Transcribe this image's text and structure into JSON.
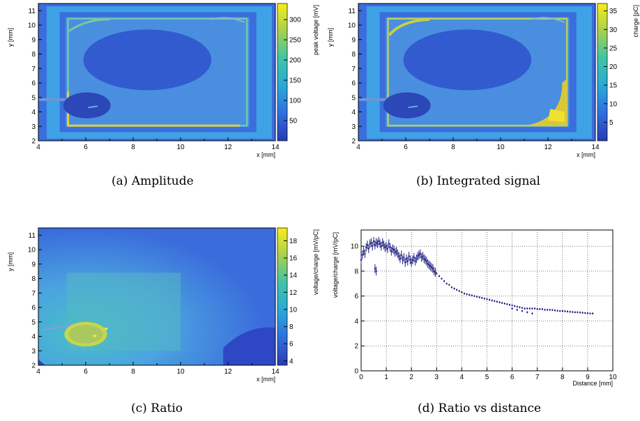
{
  "captions": {
    "a": "(a) Amplitude",
    "b": "(b) Integrated signal",
    "c": "(c) Ratio",
    "d": "(d) Ratio vs distance"
  },
  "colors": {
    "map_background": "#3f68e0",
    "map_blob": "#2e4fc6",
    "map_border": "#42a8e8",
    "map_edge": "#e6d24a",
    "scatter_points": "#1a1a80"
  },
  "chart_data": [
    {
      "id": "a",
      "type": "heatmap",
      "title": "",
      "xlabel": "x [mm]",
      "ylabel": "y [mm]",
      "xlim": [
        4,
        14
      ],
      "ylim": [
        2,
        11.5
      ],
      "xticks": [
        4,
        6,
        8,
        10,
        12,
        14
      ],
      "yticks": [
        2,
        3,
        4,
        5,
        6,
        7,
        8,
        9,
        10,
        11
      ],
      "colorbar": {
        "label": "peak voltage [mV]",
        "range": [
          0,
          340
        ],
        "ticks": [
          50,
          100,
          150,
          200,
          250,
          300
        ]
      }
    },
    {
      "id": "b",
      "type": "heatmap",
      "title": "",
      "xlabel": "x [mm]",
      "ylabel": "y [mm]",
      "xlim": [
        4,
        14
      ],
      "ylim": [
        2,
        11.5
      ],
      "xticks": [
        4,
        6,
        8,
        10,
        12,
        14
      ],
      "yticks": [
        2,
        3,
        4,
        5,
        6,
        7,
        8,
        9,
        10,
        11
      ],
      "colorbar": {
        "label": "charge [pC]",
        "range": [
          0,
          37
        ],
        "ticks": [
          5,
          10,
          15,
          20,
          25,
          30,
          35
        ]
      }
    },
    {
      "id": "c",
      "type": "heatmap",
      "title": "",
      "xlabel": "x [mm]",
      "ylabel": "y [mm]",
      "xlim": [
        4,
        14
      ],
      "ylim": [
        2,
        11.5
      ],
      "xticks": [
        4,
        6,
        8,
        10,
        12,
        14
      ],
      "yticks": [
        2,
        3,
        4,
        5,
        6,
        7,
        8,
        9,
        10,
        11
      ],
      "colorbar": {
        "label": "voltage/charge [mV/pC]",
        "range": [
          3.5,
          19.5
        ],
        "ticks": [
          4,
          6,
          8,
          10,
          12,
          14,
          16,
          18
        ]
      }
    },
    {
      "id": "d",
      "type": "scatter",
      "title": "",
      "xlabel": "Distance [mm]",
      "ylabel": "voltage/charge [mV/pC]",
      "xlim": [
        0,
        10
      ],
      "ylim": [
        0,
        11.3
      ],
      "xticks": [
        0,
        1,
        2,
        3,
        4,
        5,
        6,
        7,
        8,
        9,
        10
      ],
      "yticks": [
        0,
        2,
        4,
        6,
        8,
        10
      ],
      "grid": true,
      "series": [
        {
          "x": [
            0.0,
            0.05,
            0.1,
            0.15,
            0.2,
            0.25,
            0.3,
            0.35,
            0.4,
            0.45,
            0.5,
            0.55,
            0.6,
            0.65,
            0.7,
            0.75,
            0.8,
            0.85,
            0.9,
            0.95,
            1.0,
            1.05,
            1.1,
            1.15,
            1.2,
            1.25,
            1.3,
            1.35,
            1.4,
            1.45,
            1.5,
            1.55,
            1.6,
            1.65,
            1.7,
            1.75,
            1.8,
            1.85,
            1.9,
            1.95,
            2.0,
            2.05,
            2.1,
            2.15,
            2.2,
            2.25,
            2.3,
            2.35,
            2.4,
            2.45,
            2.5,
            2.55,
            2.6,
            2.65,
            2.7,
            2.75,
            2.8,
            2.85,
            2.9,
            2.95,
            3.0,
            3.1,
            3.2,
            3.3,
            3.4,
            3.5,
            3.6,
            3.7,
            3.8,
            3.9,
            4.0,
            4.1,
            4.2,
            4.3,
            4.4,
            4.5,
            4.6,
            4.7,
            4.8,
            4.9,
            5.0,
            5.1,
            5.2,
            5.3,
            5.4,
            5.5,
            5.6,
            5.7,
            5.8,
            5.9,
            6.0,
            6.1,
            6.2,
            6.3,
            6.4,
            6.5,
            6.6,
            6.7,
            6.8,
            6.9,
            7.0,
            7.1,
            7.2,
            7.3,
            7.4,
            7.5,
            7.6,
            7.7,
            7.8,
            7.9,
            8.0,
            8.1,
            8.2,
            8.3,
            8.4,
            8.5,
            8.6,
            8.7,
            8.8,
            8.9,
            9.0,
            9.1,
            9.2,
            0.55,
            0.6,
            6.0,
            6.2,
            6.4,
            6.6,
            6.8
          ],
          "y": [
            8.9,
            9.3,
            9.6,
            9.4,
            9.9,
            10.1,
            9.8,
            10.2,
            10.3,
            10.0,
            10.4,
            10.1,
            10.3,
            10.2,
            10.4,
            10.2,
            10.0,
            10.3,
            10.1,
            9.9,
            10.0,
            9.8,
            10.2,
            9.9,
            9.6,
            9.8,
            9.7,
            9.5,
            9.6,
            9.4,
            9.2,
            9.0,
            9.3,
            8.9,
            9.1,
            8.7,
            9.0,
            8.8,
            9.2,
            8.9,
            8.7,
            8.9,
            9.1,
            8.8,
            9.0,
            9.2,
            9.3,
            9.4,
            9.1,
            9.2,
            9.0,
            8.9,
            8.8,
            8.6,
            8.5,
            8.4,
            8.3,
            8.2,
            8.0,
            7.9,
            7.8,
            7.6,
            7.4,
            7.2,
            7.0,
            6.9,
            6.7,
            6.6,
            6.5,
            6.4,
            6.3,
            6.2,
            6.15,
            6.1,
            6.05,
            6.0,
            5.95,
            5.9,
            5.85,
            5.8,
            5.75,
            5.7,
            5.65,
            5.6,
            5.55,
            5.5,
            5.45,
            5.4,
            5.35,
            5.3,
            5.25,
            5.2,
            5.15,
            5.1,
            5.05,
            5.0,
            5.0,
            5.0,
            5.0,
            5.0,
            4.95,
            4.95,
            4.95,
            4.9,
            4.9,
            4.9,
            4.88,
            4.85,
            4.82,
            4.8,
            4.8,
            4.78,
            4.76,
            4.74,
            4.72,
            4.7,
            4.7,
            4.68,
            4.66,
            4.64,
            4.62,
            4.6,
            4.6,
            8.2,
            8.0,
            5.0,
            4.9,
            4.8,
            4.7,
            4.6
          ]
        }
      ]
    }
  ]
}
